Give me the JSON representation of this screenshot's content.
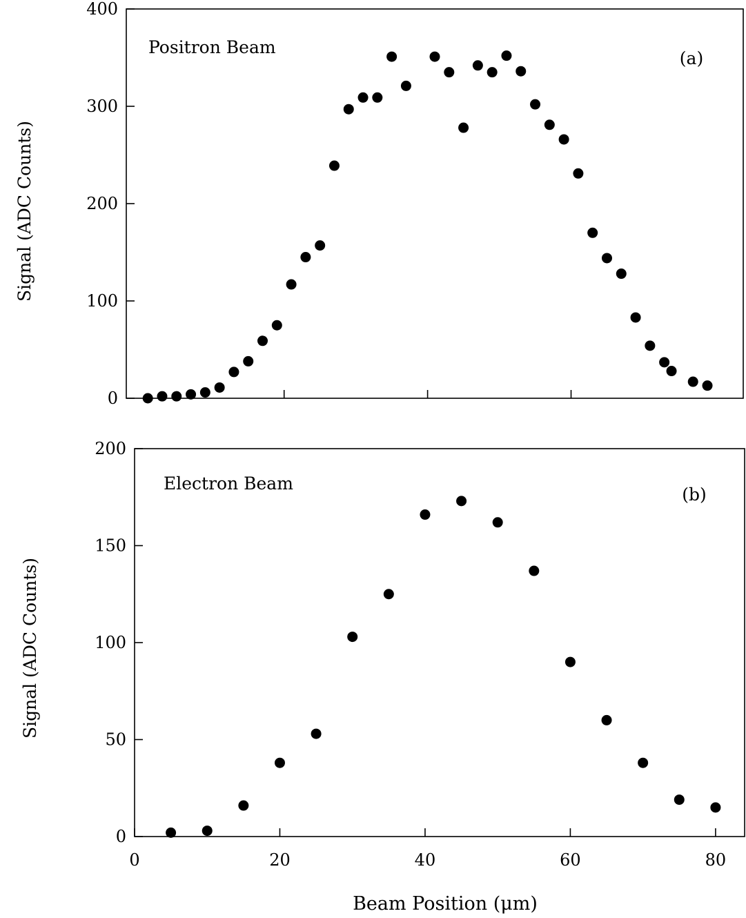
{
  "chart_data": [
    {
      "type": "scatter",
      "panel_label": "(a)",
      "title": "Positron Beam",
      "ylabel": "Signal (ADC Counts)",
      "xlabel": "",
      "xlim": [
        -2,
        84
      ],
      "ylim": [
        0,
        400
      ],
      "yticks": [
        0,
        100,
        200,
        300,
        400
      ],
      "xticks": [
        20,
        40,
        60
      ],
      "xtick_labels_shown": false,
      "grid": false,
      "legend": "none",
      "marker_color": "#000000",
      "series": [
        {
          "x": [
            1,
            3,
            5,
            7,
            9,
            11,
            13,
            15,
            17,
            19,
            21,
            23,
            25,
            27,
            29,
            31,
            33,
            35,
            37,
            41,
            43,
            45,
            47,
            49,
            51,
            53,
            55,
            57,
            59,
            61,
            63,
            65,
            67,
            69,
            71,
            73,
            74,
            77,
            79
          ],
          "y": [
            0,
            2,
            2,
            4,
            6,
            11,
            27,
            38,
            59,
            75,
            117,
            145,
            157,
            239,
            297,
            309,
            309,
            351,
            321,
            351,
            335,
            278,
            342,
            335,
            352,
            336,
            302,
            281,
            266,
            231,
            170,
            144,
            128,
            83,
            54,
            37,
            28,
            17,
            13
          ]
        }
      ]
    },
    {
      "type": "scatter",
      "panel_label": "(b)",
      "title": "Electron Beam",
      "ylabel": "Signal (ADC Counts)",
      "xlabel": "Beam Position (μm)",
      "xlim": [
        0,
        84
      ],
      "ylim": [
        0,
        200
      ],
      "yticks": [
        0,
        50,
        100,
        150,
        200
      ],
      "xticks": [
        0,
        20,
        40,
        60,
        80
      ],
      "xtick_labels_shown": true,
      "grid": false,
      "legend": "none",
      "marker_color": "#000000",
      "series": [
        {
          "x": [
            5,
            10,
            15,
            20,
            25,
            30,
            35,
            40,
            45,
            50,
            55,
            60,
            65,
            70,
            75,
            80
          ],
          "y": [
            2,
            3,
            16,
            38,
            53,
            103,
            125,
            166,
            173,
            162,
            137,
            90,
            60,
            38,
            19,
            15
          ]
        }
      ]
    }
  ]
}
